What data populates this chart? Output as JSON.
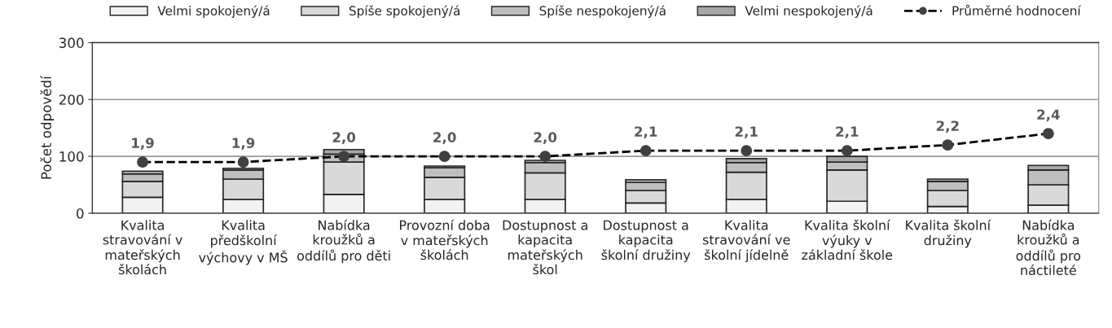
{
  "chart_data": {
    "type": "bar",
    "stacked": true,
    "ylabel": "Počet odpovědí",
    "categories": [
      "Kvalita stravování v mateřských školách",
      "Kvalita předškolní výchovy v MŠ",
      "Nabídka kroužků a oddílů pro děti",
      "Provozní doba v mateřských školách",
      "Dostupnost a kapacita mateřských škol",
      "Dostupnost a kapacita školní družiny",
      "Kvalita stravování ve školní jídelně",
      "Kvalita školní výuky v základní škole",
      "Kvalita školní družiny",
      "Nabídka kroužků a oddílů pro náctileté"
    ],
    "series": [
      {
        "name": "Velmi spokojený/á",
        "color": "#f2f2f2",
        "values": [
          28,
          24,
          33,
          24,
          24,
          18,
          24,
          21,
          12,
          14
        ]
      },
      {
        "name": "Spíše spokojený/á",
        "color": "#d9d9d9",
        "values": [
          28,
          36,
          57,
          39,
          47,
          22,
          48,
          55,
          28,
          36
        ]
      },
      {
        "name": "Spíše nespokojený/á",
        "color": "#bfbfbf",
        "values": [
          13,
          16,
          14,
          17,
          18,
          14,
          17,
          14,
          16,
          26
        ]
      },
      {
        "name": "Velmi nespokojený/á",
        "color": "#a6a6a6",
        "values": [
          5,
          3,
          8,
          3,
          4,
          5,
          7,
          10,
          4,
          8
        ]
      },
      {
        "name": "Průměrné hodnocení",
        "type": "line",
        "axis": "y2",
        "color": "#404040",
        "marker": "circle",
        "line_style": "dashed",
        "values": [
          1.9,
          1.9,
          2.0,
          2.0,
          2.0,
          2.1,
          2.1,
          2.1,
          2.2,
          2.4
        ],
        "value_labels": [
          "1,9",
          "1,9",
          "2,0",
          "2,0",
          "2,0",
          "2,1",
          "2,1",
          "2,1",
          "2,2",
          "2,4"
        ]
      }
    ],
    "ylim": [
      0,
      300
    ],
    "yticks": [
      0,
      100,
      200,
      300
    ],
    "y2lim": [
      1,
      4
    ],
    "grid": "y",
    "legend": "top"
  }
}
